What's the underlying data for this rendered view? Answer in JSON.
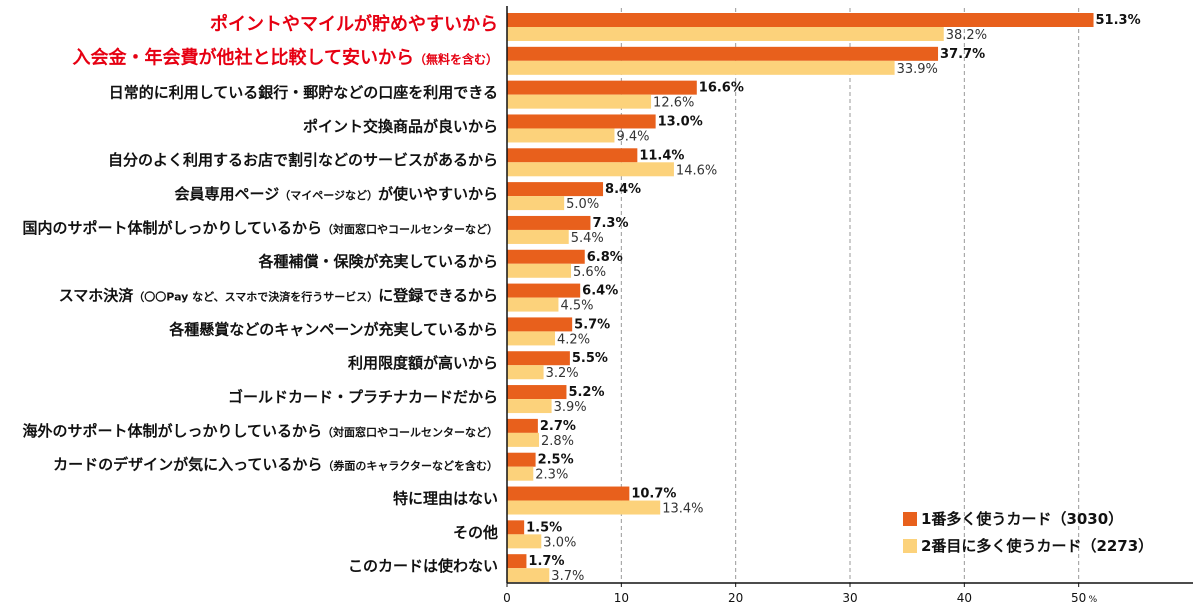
{
  "chart_data": {
    "type": "bar",
    "orientation": "horizontal",
    "categories": [
      {
        "main": "ポイントやマイルが貯めやすいから",
        "sub": "",
        "highlight": true
      },
      {
        "main": "入会金・年会費が他社と比較して安いから",
        "sub": "（無料を含む）",
        "highlight": true
      },
      {
        "main": "日常的に利用している銀行・郵貯などの口座を利用できる",
        "sub": "",
        "highlight": false
      },
      {
        "main": "ポイント交換商品が良いから",
        "sub": "",
        "highlight": false
      },
      {
        "main": "自分のよく利用するお店で割引などのサービスがあるから",
        "sub": "",
        "highlight": false
      },
      {
        "main": "会員専用ページ",
        "sub": "（マイページなど）",
        "tail": "が使いやすいから",
        "highlight": false
      },
      {
        "main": "国内のサポート体制がしっかりしているから",
        "sub": "（対面窓口やコールセンターなど）",
        "highlight": false
      },
      {
        "main": "各種補償・保険が充実しているから",
        "sub": "",
        "highlight": false
      },
      {
        "main": "スマホ決済",
        "sub": "（〇〇Pay など、スマホで決済を行うサービス）",
        "tail": "に登録できるから",
        "highlight": false
      },
      {
        "main": "各種懸賞などのキャンペーンが充実しているから",
        "sub": "",
        "highlight": false
      },
      {
        "main": "利用限度額が高いから",
        "sub": "",
        "highlight": false
      },
      {
        "main": "ゴールドカード・プラチナカードだから",
        "sub": "",
        "highlight": false
      },
      {
        "main": "海外のサポート体制がしっかりしているから",
        "sub": "（対面窓口やコールセンターなど）",
        "highlight": false
      },
      {
        "main": "カードのデザインが気に入っているから",
        "sub": "（券面のキャラクターなどを含む）",
        "highlight": false
      },
      {
        "main": "特に理由はない",
        "sub": "",
        "highlight": false
      },
      {
        "main": "その他",
        "sub": "",
        "highlight": false
      },
      {
        "main": "このカードは使わない",
        "sub": "",
        "highlight": false
      }
    ],
    "series": [
      {
        "name": "1番多く使うカード（3030）",
        "color": "#e8601c",
        "values": [
          51.3,
          37.7,
          16.6,
          13.0,
          11.4,
          8.4,
          7.3,
          6.8,
          6.4,
          5.7,
          5.5,
          5.2,
          2.7,
          2.5,
          10.7,
          1.5,
          1.7
        ]
      },
      {
        "name": "2番目に多く使うカード（2273）",
        "color": "#fcd27b",
        "values": [
          38.2,
          33.9,
          12.6,
          9.4,
          14.6,
          5.0,
          5.4,
          5.6,
          4.5,
          4.2,
          3.2,
          3.9,
          2.8,
          2.3,
          13.4,
          3.0,
          3.7
        ]
      }
    ],
    "xlim": [
      0,
      60
    ],
    "xticks": [
      0,
      10,
      20,
      30,
      40,
      50
    ],
    "xunit": "%",
    "grid": true,
    "legend": "bottom-right"
  }
}
